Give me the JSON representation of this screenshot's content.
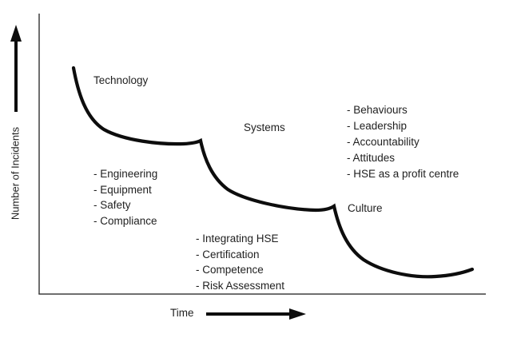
{
  "axes": {
    "y_label": "Number of Incidents",
    "x_label": "Time"
  },
  "phases": [
    {
      "label": "Technology",
      "items": [
        "- Engineering",
        "- Equipment",
        "- Safety",
        "- Compliance"
      ]
    },
    {
      "label": "Systems",
      "items": [
        "- Integrating HSE",
        "- Certification",
        "- Competence",
        "- Risk Assessment"
      ]
    },
    {
      "label": "Culture",
      "items": [
        "- Behaviours",
        "- Leadership",
        "- Accountability",
        "- Attitudes",
        "- HSE as a profit centre"
      ]
    }
  ],
  "curve_description": "Stepped declining curve of incidents over time with three improvement phases: Technology, Systems, Culture",
  "colors": {
    "curve": "#0d0d0d",
    "axis": "#3f3f3f",
    "arrow": "#0d0d0d",
    "text": "#1f1f1f",
    "background": "#ffffff"
  }
}
